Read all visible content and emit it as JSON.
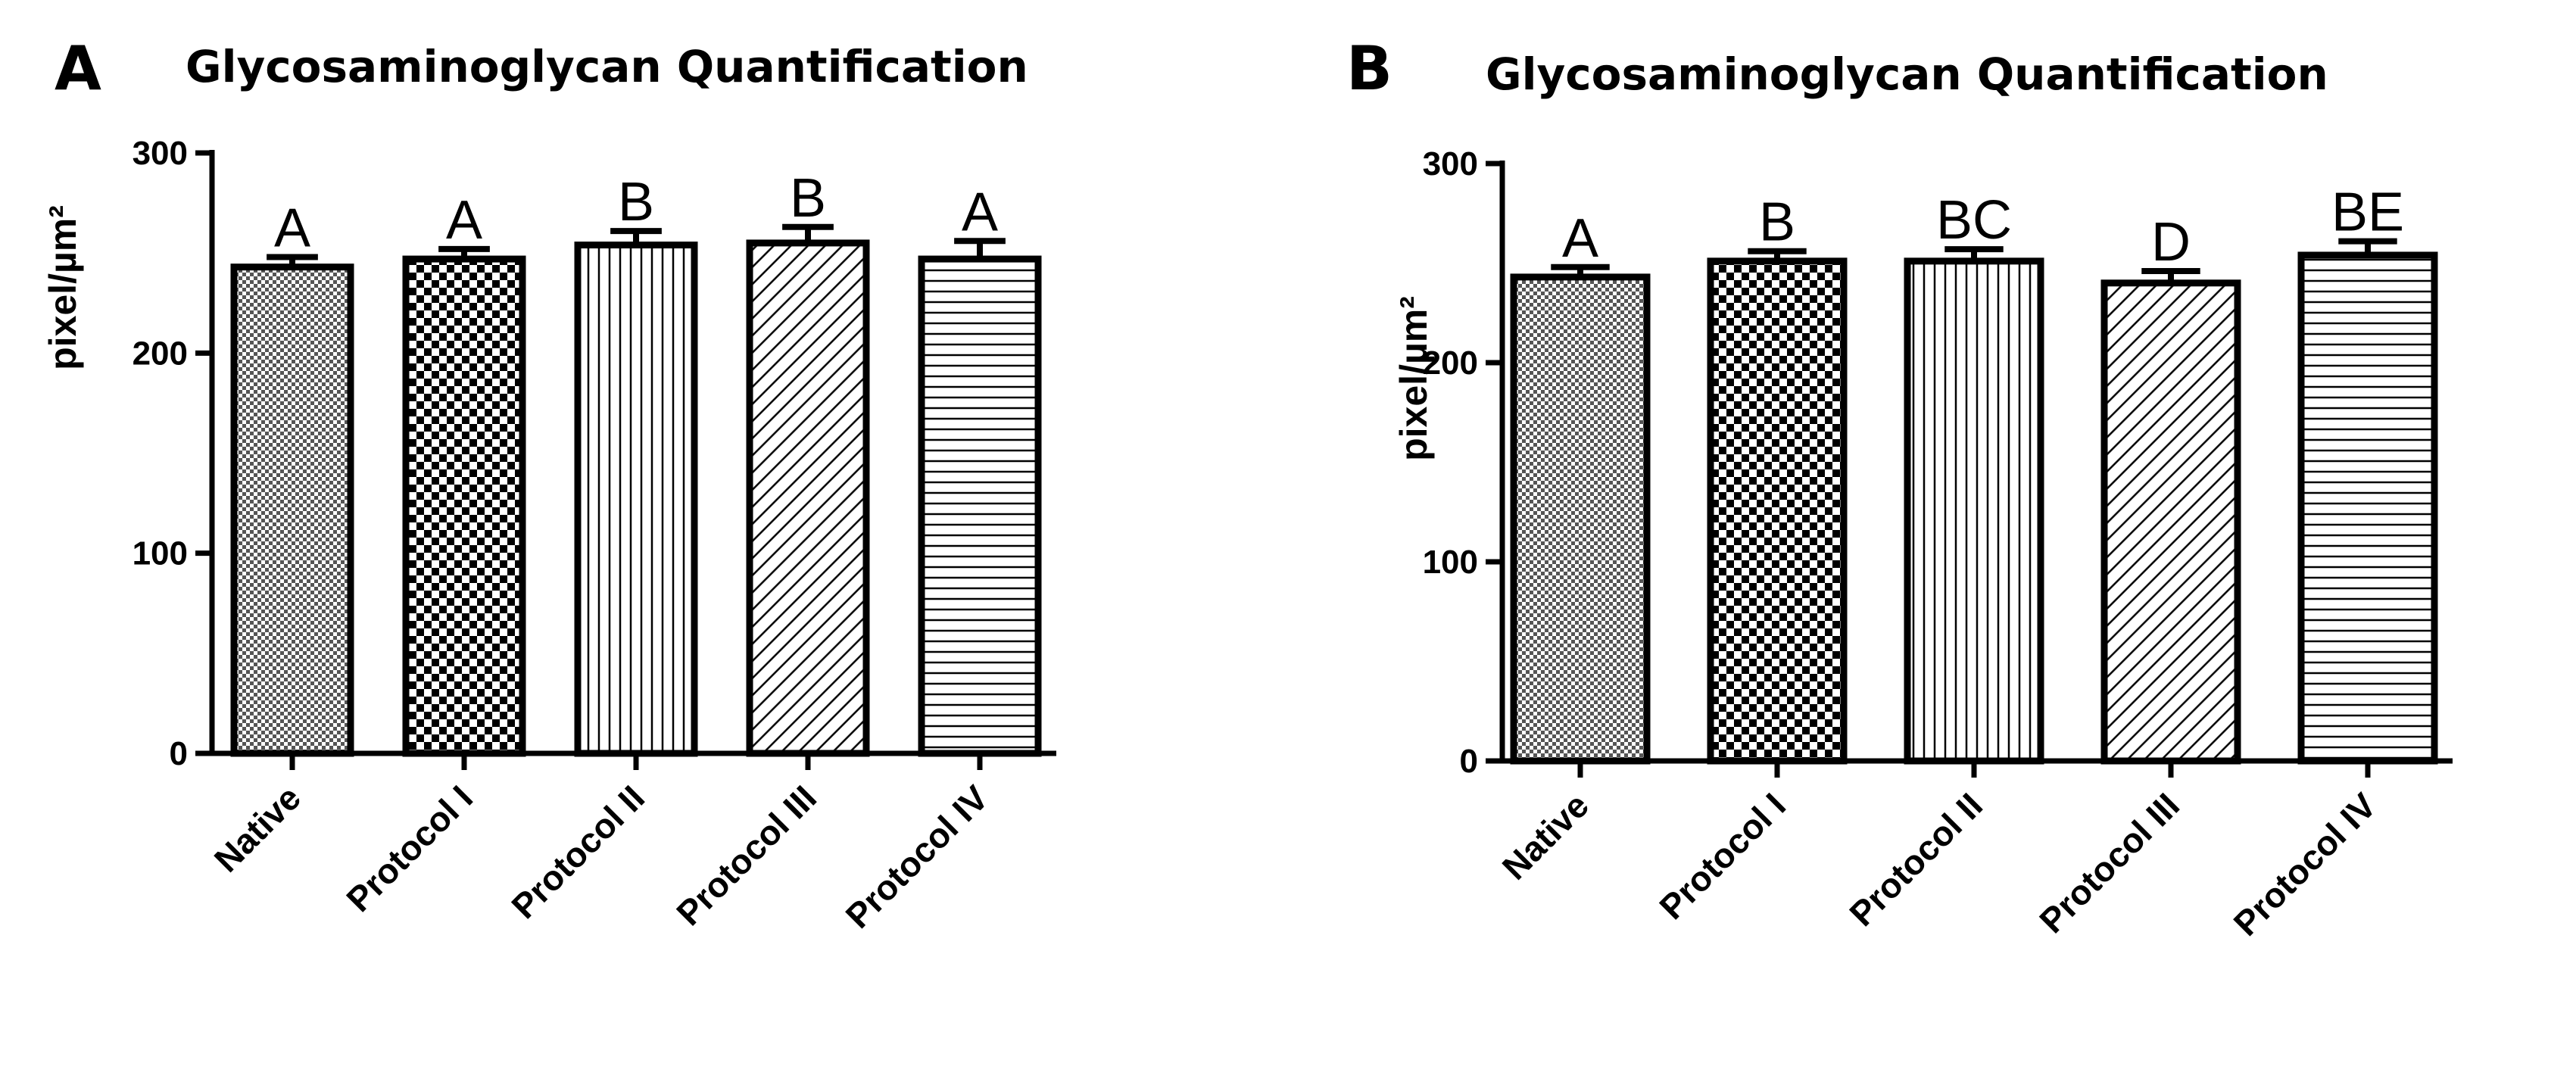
{
  "figure": {
    "panels": [
      "A",
      "B"
    ]
  },
  "chart_data": [
    {
      "panel": "A",
      "type": "bar",
      "title": "Glycosaminoglycan Quantification",
      "xlabel": "",
      "ylabel": "pixel/µm²",
      "ylim": [
        0,
        300
      ],
      "yticks": [
        0,
        100,
        200,
        300
      ],
      "categories": [
        "Native",
        "Protocol I",
        "Protocol II",
        "Protocol III",
        "Protocol IV"
      ],
      "values": [
        243,
        247,
        254,
        255,
        247
      ],
      "errors": [
        5,
        5,
        7,
        8,
        9
      ],
      "significance": [
        "A",
        "A",
        "B",
        "B",
        "A"
      ],
      "patterns": [
        "crosshatch",
        "checker",
        "vertical",
        "diagonal",
        "horizontal"
      ]
    },
    {
      "panel": "B",
      "type": "bar",
      "title": "Glycosaminoglycan Quantification",
      "xlabel": "",
      "ylabel": "pixel/µm²",
      "ylim": [
        0,
        300
      ],
      "yticks": [
        0,
        100,
        200,
        300
      ],
      "categories": [
        "Native",
        "Protocol I",
        "Protocol II",
        "Protocol III",
        "Protocol IV"
      ],
      "values": [
        243,
        251,
        251,
        240,
        254
      ],
      "errors": [
        5,
        5,
        6,
        6,
        7
      ],
      "significance": [
        "A",
        "B",
        "BC",
        "D",
        "BE"
      ],
      "patterns": [
        "crosshatch",
        "checker",
        "vertical",
        "diagonal",
        "horizontal"
      ]
    }
  ]
}
